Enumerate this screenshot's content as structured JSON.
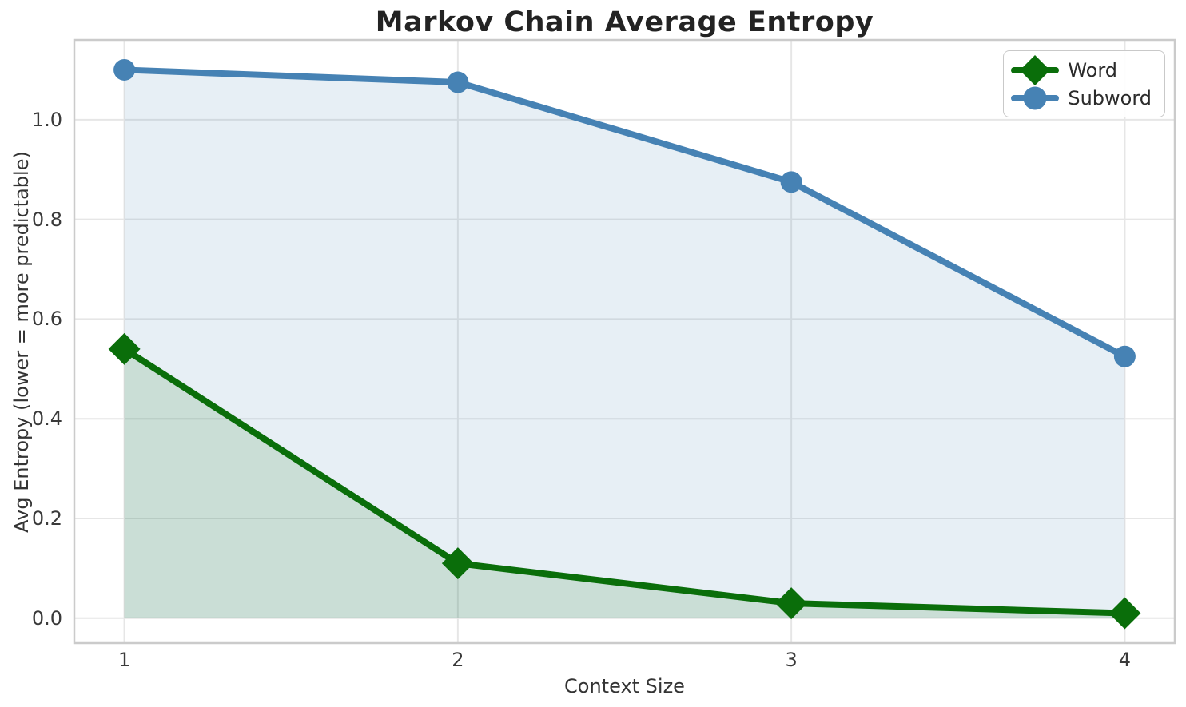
{
  "chart_data": {
    "type": "line",
    "title": "Markov Chain Average Entropy",
    "xlabel": "Context Size",
    "ylabel": "Avg Entropy (lower = more predictable)",
    "x": [
      1,
      2,
      3,
      4
    ],
    "series": [
      {
        "name": "Word",
        "values": [
          0.54,
          0.11,
          0.03,
          0.01
        ],
        "color": "#0a6e0a",
        "marker": "diamond",
        "fill_opacity": 0.13
      },
      {
        "name": "Subword",
        "values": [
          1.1,
          1.075,
          0.875,
          0.525
        ],
        "color": "#4682b4",
        "marker": "circle",
        "fill_opacity": 0.13
      }
    ],
    "xlim": [
      0.85,
      4.15
    ],
    "ylim": [
      -0.05,
      1.16
    ],
    "xticks": [
      "1",
      "2",
      "3",
      "4"
    ],
    "xtick_values": [
      1,
      2,
      3,
      4
    ],
    "yticks": [
      "0.0",
      "0.2",
      "0.4",
      "0.6",
      "0.8",
      "1.0"
    ],
    "ytick_values": [
      0,
      0.2,
      0.4,
      0.6,
      0.8,
      1.0
    ],
    "grid": true,
    "legend_position": "upper right",
    "area_fill": true,
    "grid_color": "#e6e6e6",
    "spine_color": "#cbcbcb",
    "background_color": "#ffffff"
  }
}
